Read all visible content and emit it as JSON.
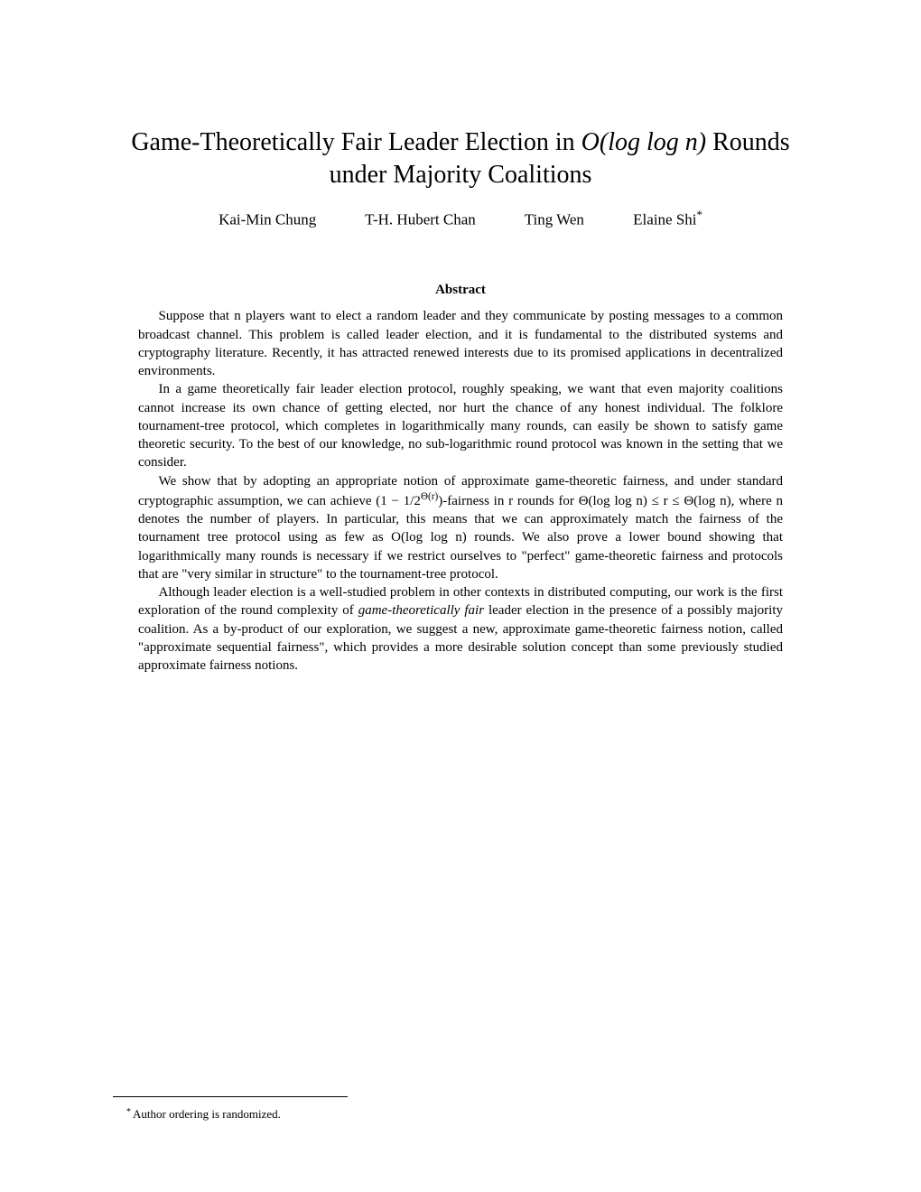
{
  "title_line1_pre": "Game-Theoretically Fair Leader Election in ",
  "title_line1_math": "O(log log n)",
  "title_line1_post": " Rounds",
  "title_line2": "under Majority Coalitions",
  "authors": {
    "a1": "Kai-Min Chung",
    "a2": "T-H. Hubert Chan",
    "a3": "Ting Wen",
    "a4": "Elaine Shi",
    "a4_mark": "*"
  },
  "abstract_heading": "Abstract",
  "abstract": {
    "p1": "Suppose that n players want to elect a random leader and they communicate by posting messages to a common broadcast channel. This problem is called leader election, and it is fundamental to the distributed systems and cryptography literature. Recently, it has attracted renewed interests due to its promised applications in decentralized environments.",
    "p2": "In a game theoretically fair leader election protocol, roughly speaking, we want that even majority coalitions cannot increase its own chance of getting elected, nor hurt the chance of any honest individual. The folklore tournament-tree protocol, which completes in logarithmically many rounds, can easily be shown to satisfy game theoretic security. To the best of our knowledge, no sub-logarithmic round protocol was known in the setting that we consider.",
    "p3_a": "We show that by adopting an appropriate notion of approximate game-theoretic fairness, and under standard cryptographic assumption, we can achieve (1 − 1/2",
    "p3_exp": "Θ(r)",
    "p3_b": ")-fairness in r rounds for Θ(log log n) ≤ r ≤ Θ(log n), where n denotes the number of players. In particular, this means that we can approximately match the fairness of the tournament tree protocol using as few as O(log log n) rounds. We also prove a lower bound showing that logarithmically many rounds is necessary if we restrict ourselves to \"perfect\" game-theoretic fairness and protocols that are \"very similar in structure\" to the tournament-tree protocol.",
    "p4_a": "Although leader election is a well-studied problem in other contexts in distributed computing, our work is the first exploration of the round complexity of ",
    "p4_ital": "game-theoretically fair",
    "p4_b": " leader election in the presence of a possibly majority coalition. As a by-product of our exploration, we suggest a new, approximate game-theoretic fairness notion, called \"approximate sequential fairness\", which provides a more desirable solution concept than some previously studied approximate fairness notions."
  },
  "footnote": {
    "mark": "*",
    "text": "Author ordering is randomized."
  }
}
